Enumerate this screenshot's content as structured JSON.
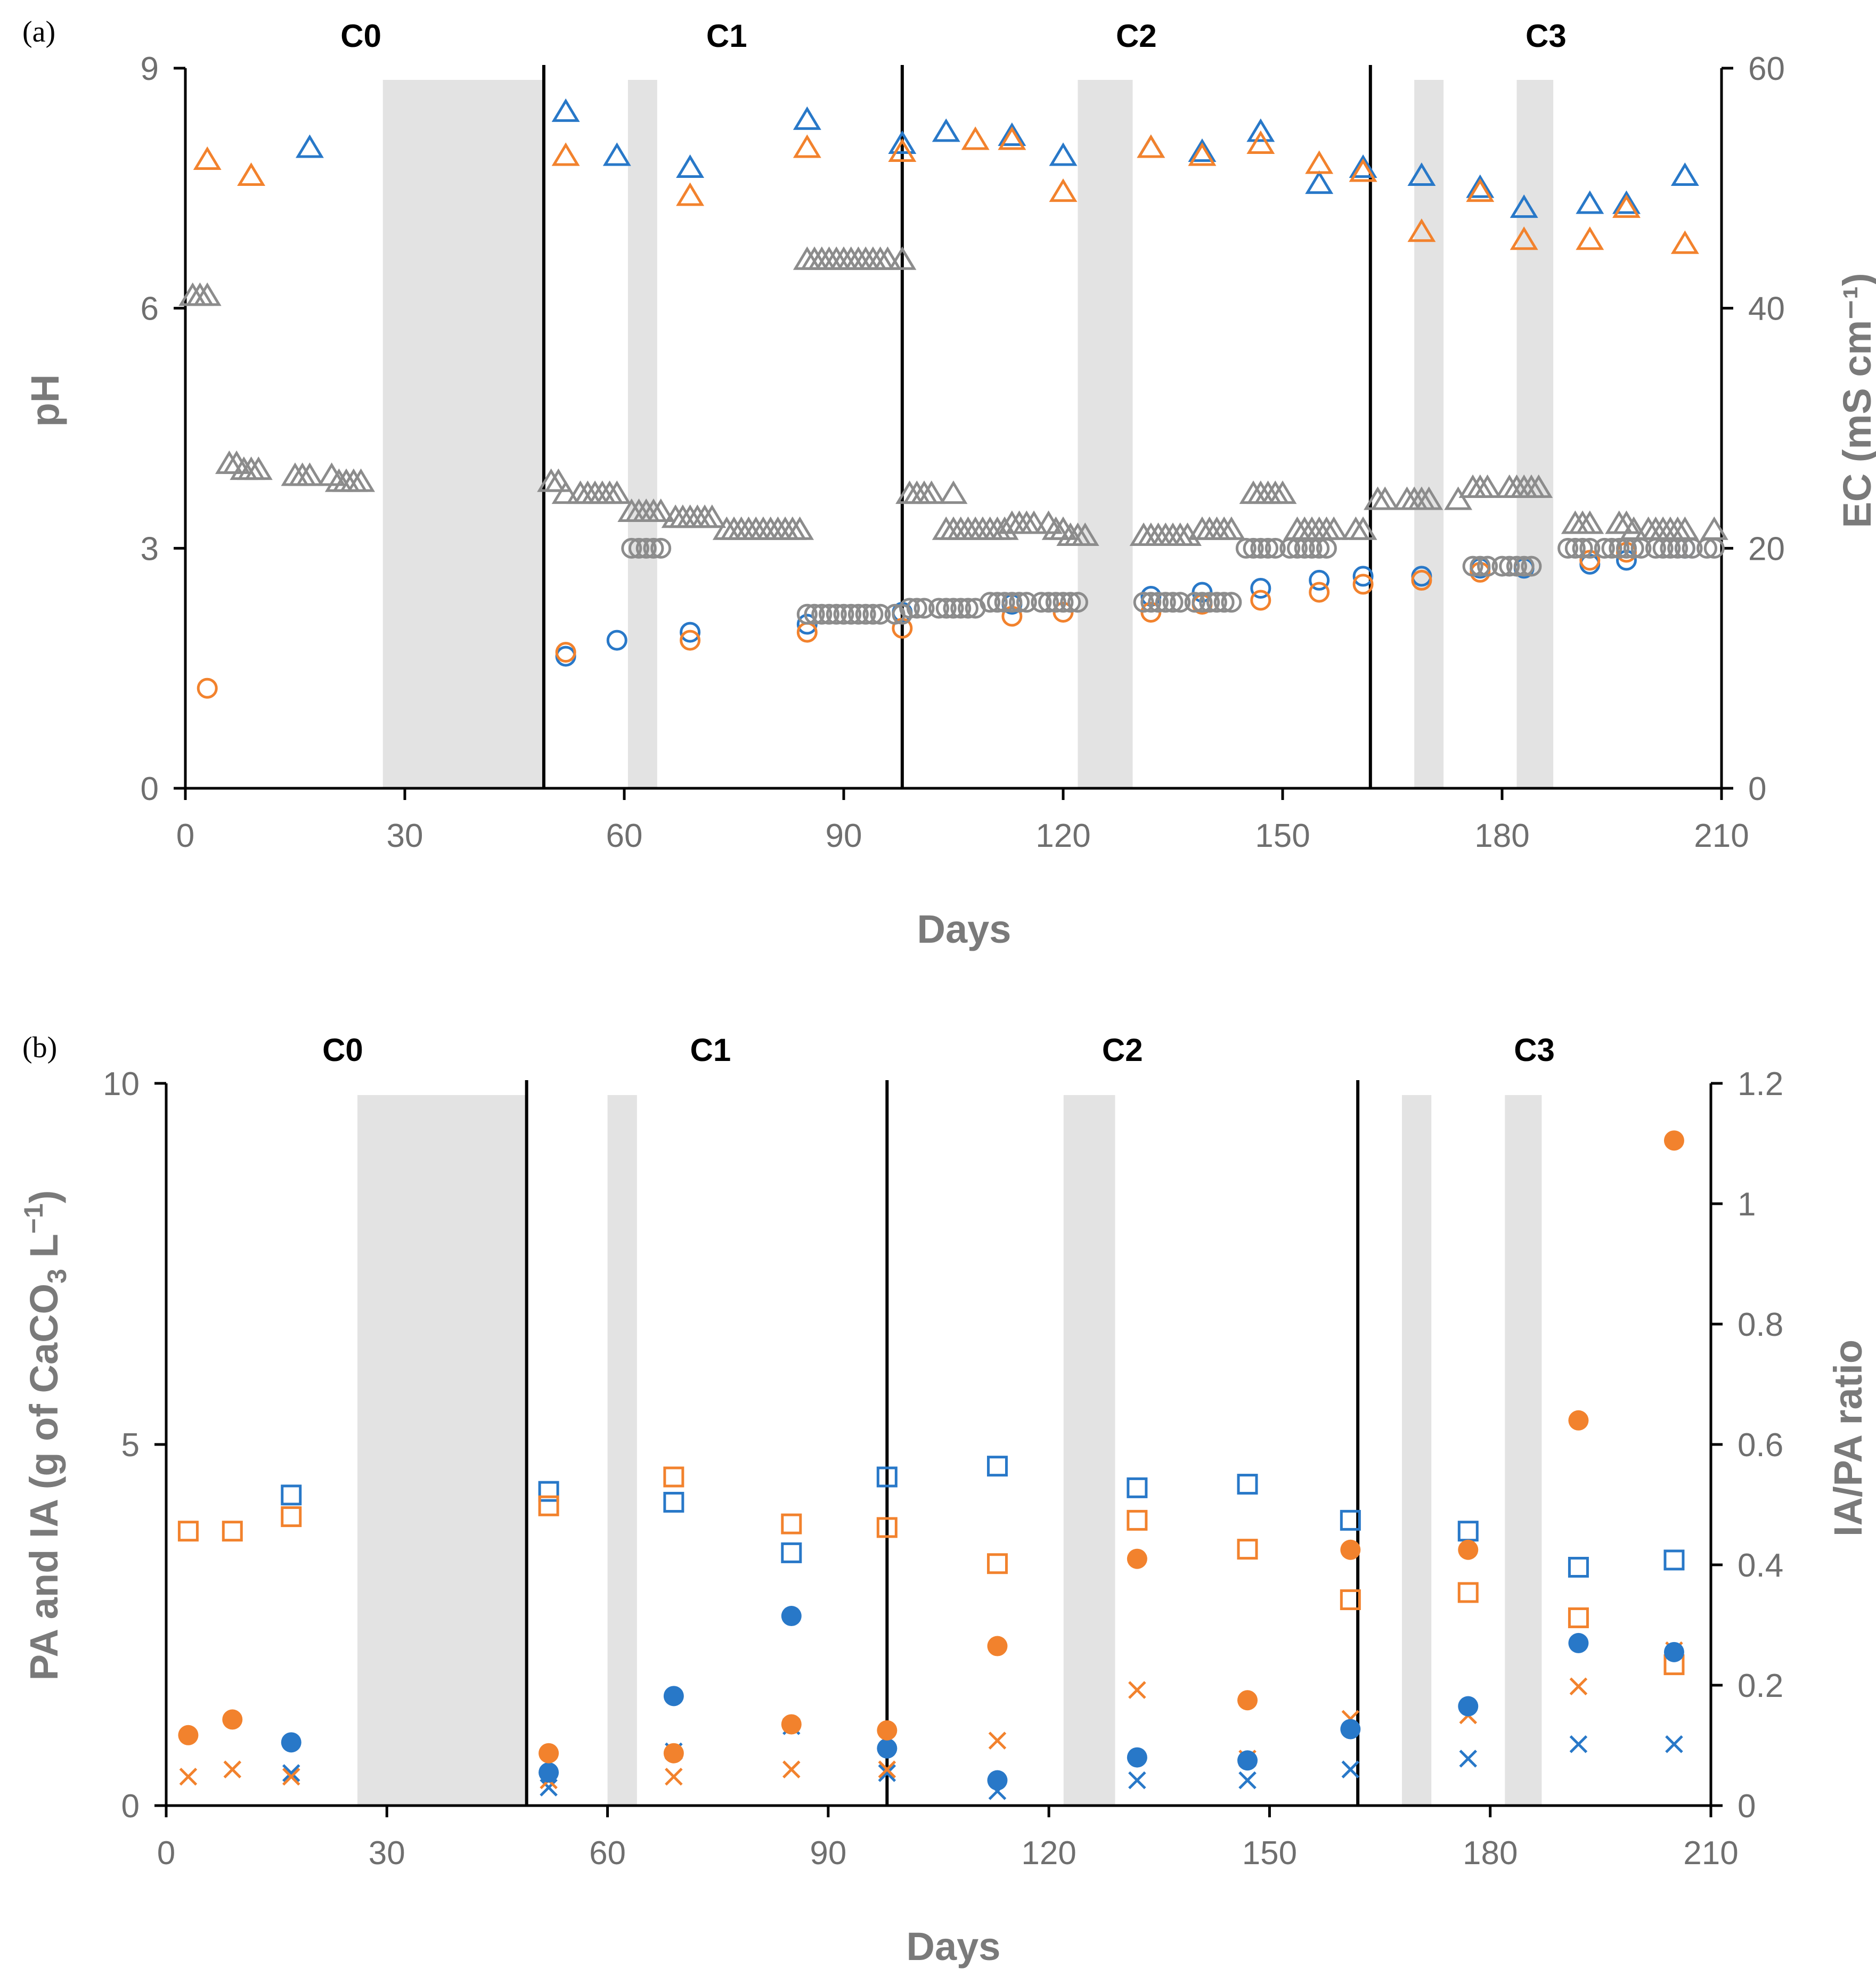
{
  "colors": {
    "blue": "#2878c8",
    "orange": "#f2822d",
    "gray": "#8c8c8c",
    "shade": "#e3e3e3"
  },
  "chart_data": [
    {
      "type": "scatter",
      "panel_label": "(a)",
      "xlabel": "Days",
      "ylabel": "pH",
      "y2label": "EC (mS cm⁻¹)",
      "xlim": [
        0,
        210
      ],
      "ylim": [
        0,
        9
      ],
      "y2lim": [
        0,
        60
      ],
      "xticks": [
        "0",
        "30",
        "60",
        "90",
        "120",
        "150",
        "180",
        "210"
      ],
      "yticks": [
        "0",
        "3",
        "6",
        "9"
      ],
      "y2ticks": [
        "0",
        "20",
        "40",
        "60"
      ],
      "phases": [
        "C0",
        "C1",
        "C2",
        "C3"
      ],
      "phase_centers": [
        24,
        74,
        130,
        186
      ],
      "phase_dividers": [
        49,
        98,
        162
      ],
      "shaded_intervals": [
        [
          27,
          49
        ],
        [
          60.5,
          64.5
        ],
        [
          122,
          129.5
        ],
        [
          168,
          172
        ],
        [
          182,
          187
        ]
      ],
      "series": [
        {
          "name": "pH blue",
          "marker": "triangle",
          "color": "blue",
          "axis": "left",
          "x": [
            17,
            52,
            59,
            69,
            85,
            98,
            104,
            113,
            120,
            132,
            139,
            147,
            155,
            161,
            169,
            177,
            183,
            192,
            197,
            205
          ],
          "y": [
            8.0,
            8.45,
            7.9,
            7.75,
            8.35,
            8.05,
            8.2,
            8.15,
            7.9,
            8.0,
            7.95,
            8.2,
            7.55,
            7.75,
            7.65,
            7.5,
            7.25,
            7.3,
            7.3,
            7.65
          ]
        },
        {
          "name": "pH orange",
          "marker": "triangle",
          "color": "orange",
          "axis": "left",
          "x": [
            3,
            9,
            52,
            69,
            85,
            98,
            108,
            113,
            120,
            132,
            139,
            147,
            155,
            161,
            169,
            177,
            183,
            192,
            197,
            205
          ],
          "y": [
            7.85,
            7.65,
            7.9,
            7.4,
            8.0,
            7.95,
            8.1,
            8.1,
            7.45,
            8.0,
            7.9,
            8.05,
            7.8,
            7.7,
            6.95,
            7.45,
            6.85,
            6.85,
            7.25,
            6.8
          ]
        },
        {
          "name": "pH blue circles",
          "marker": "circle",
          "color": "blue",
          "axis": "left",
          "x": [
            52,
            59,
            69,
            85,
            98,
            113,
            132,
            139,
            147,
            155,
            161,
            169,
            177,
            183,
            192,
            197,
            205
          ],
          "y": [
            1.65,
            1.85,
            1.95,
            2.05,
            2.2,
            2.3,
            2.4,
            2.45,
            2.5,
            2.6,
            2.65,
            2.65,
            2.75,
            2.75,
            2.8,
            2.85,
            3.0
          ]
        },
        {
          "name": "pH orange circles",
          "marker": "circle",
          "color": "orange",
          "axis": "left",
          "x": [
            3,
            52,
            69,
            85,
            98,
            113,
            120,
            132,
            139,
            147,
            155,
            161,
            169,
            177,
            192,
            197
          ],
          "y": [
            1.25,
            1.7,
            1.85,
            1.95,
            2.0,
            2.15,
            2.2,
            2.2,
            2.3,
            2.35,
            2.45,
            2.55,
            2.6,
            2.7,
            2.85,
            2.95
          ]
        },
        {
          "name": "EC triangles",
          "marker": "triangle",
          "color": "gray",
          "axis": "right",
          "x": [
            1,
            2,
            3,
            6,
            7,
            8,
            9,
            10,
            15,
            16,
            17,
            20,
            21,
            22,
            23,
            24,
            50,
            51,
            52,
            54,
            55,
            56,
            57,
            58,
            59,
            61,
            62,
            63,
            64,
            65,
            67,
            68,
            69,
            70,
            71,
            72,
            74,
            75,
            76,
            77,
            78,
            79,
            80,
            81,
            82,
            83,
            84,
            85,
            86,
            87,
            88,
            89,
            90,
            91,
            92,
            93,
            94,
            95,
            96,
            98,
            99,
            100,
            101,
            102,
            105,
            104,
            105,
            106,
            107,
            108,
            109,
            110,
            111,
            112,
            113,
            114,
            115,
            116,
            118,
            119,
            120,
            121,
            122,
            123,
            131,
            132,
            133,
            134,
            135,
            136,
            137,
            139,
            140,
            141,
            142,
            143,
            146,
            147,
            148,
            149,
            150,
            152,
            153,
            154,
            155,
            156,
            157,
            160,
            161,
            163,
            164,
            167,
            168,
            169,
            170,
            174,
            176,
            177,
            178,
            181,
            182,
            183,
            184,
            185,
            190,
            191,
            192,
            196,
            197,
            198,
            200,
            201,
            202,
            203,
            204,
            205,
            209
          ],
          "y": [
            41,
            41,
            41,
            27,
            27,
            26.5,
            26.5,
            26.5,
            26,
            26,
            26,
            26,
            25.5,
            25.5,
            25.5,
            25.5,
            25.5,
            25.5,
            24.5,
            24.5,
            24.5,
            24.5,
            24.5,
            24.5,
            24.5,
            23,
            23,
            23,
            23,
            23,
            22.5,
            22.5,
            22.5,
            22.5,
            22.5,
            22.5,
            21.5,
            21.5,
            21.5,
            21.5,
            21.5,
            21.5,
            21.5,
            21.5,
            21.5,
            21.5,
            21.5,
            44,
            44,
            44,
            44,
            44,
            44,
            44,
            44,
            44,
            44,
            44,
            44,
            44,
            24.5,
            24.5,
            24.5,
            24.5,
            24.5,
            21.5,
            21.5,
            21.5,
            21.5,
            21.5,
            21.5,
            21.5,
            21.5,
            21.5,
            22,
            22,
            22,
            22,
            22,
            21.5,
            21.5,
            21,
            21,
            21,
            21,
            21,
            21,
            21,
            21,
            21,
            21,
            21.5,
            21.5,
            21.5,
            21.5,
            21.5,
            24.5,
            24.5,
            24.5,
            24.5,
            24.5,
            21.5,
            21.5,
            21.5,
            21.5,
            21.5,
            21.5,
            21.5,
            21.5,
            24,
            24,
            24,
            24,
            24,
            24,
            24,
            25,
            25,
            25,
            25,
            25,
            25,
            25,
            25,
            22,
            22,
            22,
            22,
            22,
            21.5,
            21.5,
            21.5,
            21.5,
            21.5,
            21.5,
            21.5,
            21.5
          ]
        },
        {
          "name": "EC circles",
          "marker": "circle",
          "color": "gray",
          "axis": "right",
          "x": [
            61,
            62,
            63,
            64,
            65,
            85,
            86,
            87,
            88,
            89,
            90,
            91,
            92,
            93,
            94,
            95,
            97,
            98,
            99,
            100,
            101,
            103,
            104,
            105,
            106,
            107,
            108,
            110,
            111,
            112,
            113,
            114,
            115,
            117,
            118,
            119,
            120,
            121,
            122,
            131,
            132,
            133,
            134,
            135,
            136,
            138,
            139,
            140,
            141,
            142,
            143,
            145,
            146,
            147,
            148,
            149,
            151,
            152,
            153,
            154,
            155,
            156,
            176,
            177,
            178,
            180,
            181,
            182,
            183,
            184,
            189,
            190,
            191,
            192,
            194,
            195,
            196,
            197,
            198,
            199,
            201,
            202,
            203,
            204,
            205,
            206,
            208,
            209
          ],
          "y": [
            20,
            20,
            20,
            20,
            20,
            14.5,
            14.5,
            14.5,
            14.5,
            14.5,
            14.5,
            14.5,
            14.5,
            14.5,
            14.5,
            14.5,
            14.5,
            14.5,
            15,
            15,
            15,
            15,
            15,
            15,
            15,
            15,
            15,
            15.5,
            15.5,
            15.5,
            15.5,
            15.5,
            15.5,
            15.5,
            15.5,
            15.5,
            15.5,
            15.5,
            15.5,
            15.5,
            15.5,
            15.5,
            15.5,
            15.5,
            15.5,
            15.5,
            15.5,
            15.5,
            15.5,
            15.5,
            15.5,
            20,
            20,
            20,
            20,
            20,
            20,
            20,
            20,
            20,
            20,
            20,
            18.5,
            18.5,
            18.5,
            18.5,
            18.5,
            18.5,
            18.5,
            18.5,
            20,
            20,
            20,
            20,
            20,
            20,
            20,
            20,
            20,
            20,
            20,
            20,
            20,
            20,
            20,
            20,
            20,
            20
          ]
        }
      ]
    },
    {
      "type": "scatter",
      "panel_label": "(b)",
      "xlabel": "Days",
      "ylabel": "PA and IA  (g of CaCO",
      "ylabel_sub": "3",
      "ylabel_tail": " L",
      "ylabel_sup": "−1",
      "ylabel_close": ")",
      "y2label": "IA/PA ratio",
      "xlim": [
        0,
        210
      ],
      "ylim": [
        0,
        10
      ],
      "y2lim": [
        0,
        1.2
      ],
      "xticks": [
        "0",
        "30",
        "60",
        "90",
        "120",
        "150",
        "180",
        "210"
      ],
      "yticks": [
        "0",
        "5",
        "10"
      ],
      "y2ticks": [
        "0",
        "0.2",
        "0.4",
        "0.6",
        "0.8",
        "1",
        "1.2"
      ],
      "phases": [
        "C0",
        "C1",
        "C2",
        "C3"
      ],
      "phase_centers": [
        24,
        74,
        130,
        186
      ],
      "phase_dividers": [
        49,
        98,
        162
      ],
      "shaded_intervals": [
        [
          26,
          49
        ],
        [
          60,
          64
        ],
        [
          122,
          129
        ],
        [
          168,
          172
        ],
        [
          182,
          187
        ]
      ],
      "series": [
        {
          "name": "PA blue",
          "marker": "square",
          "color": "blue",
          "axis": "left",
          "x": [
            17,
            52,
            69,
            85,
            98,
            113,
            132,
            147,
            161,
            177,
            192,
            205
          ],
          "y": [
            4.3,
            4.35,
            4.2,
            3.5,
            4.55,
            4.7,
            4.4,
            4.45,
            3.95,
            3.8,
            3.3,
            3.4
          ]
        },
        {
          "name": "PA orange",
          "marker": "square",
          "color": "orange",
          "axis": "left",
          "x": [
            3,
            9,
            17,
            52,
            69,
            85,
            98,
            113,
            132,
            147,
            161,
            177,
            192,
            205
          ],
          "y": [
            3.8,
            3.8,
            4.0,
            4.15,
            4.55,
            3.9,
            3.85,
            3.35,
            3.95,
            3.55,
            2.85,
            2.95,
            2.6,
            1.95
          ]
        },
        {
          "name": "IA blue",
          "marker": "cross",
          "color": "blue",
          "axis": "left",
          "x": [
            17,
            52,
            69,
            85,
            98,
            113,
            132,
            147,
            161,
            177,
            192,
            205
          ],
          "y": [
            0.45,
            0.25,
            0.75,
            1.1,
            0.45,
            0.2,
            0.35,
            0.35,
            0.5,
            0.65,
            0.85,
            0.85
          ]
        },
        {
          "name": "IA orange",
          "marker": "cross",
          "color": "orange",
          "axis": "left",
          "x": [
            3,
            9,
            17,
            52,
            69,
            85,
            98,
            113,
            132,
            147,
            161,
            177,
            192,
            205
          ],
          "y": [
            0.4,
            0.5,
            0.4,
            0.35,
            0.4,
            0.5,
            0.5,
            0.9,
            1.6,
            0.65,
            1.2,
            1.25,
            1.65,
            2.15
          ]
        },
        {
          "name": "IA/PA blue",
          "marker": "dot",
          "color": "blue",
          "axis": "right",
          "x": [
            17,
            52,
            69,
            85,
            98,
            113,
            132,
            147,
            161,
            177,
            192,
            205
          ],
          "y": [
            0.105,
            0.055,
            0.182,
            0.315,
            0.095,
            0.042,
            0.08,
            0.075,
            0.127,
            0.165,
            0.27,
            0.255
          ]
        },
        {
          "name": "IA/PA orange",
          "marker": "dot",
          "color": "orange",
          "axis": "right",
          "x": [
            3,
            9,
            52,
            69,
            85,
            98,
            113,
            132,
            147,
            161,
            177,
            192,
            205
          ],
          "y": [
            0.117,
            0.143,
            0.087,
            0.087,
            0.135,
            0.125,
            0.265,
            0.41,
            0.175,
            0.425,
            0.425,
            0.64,
            1.105
          ]
        }
      ]
    }
  ]
}
